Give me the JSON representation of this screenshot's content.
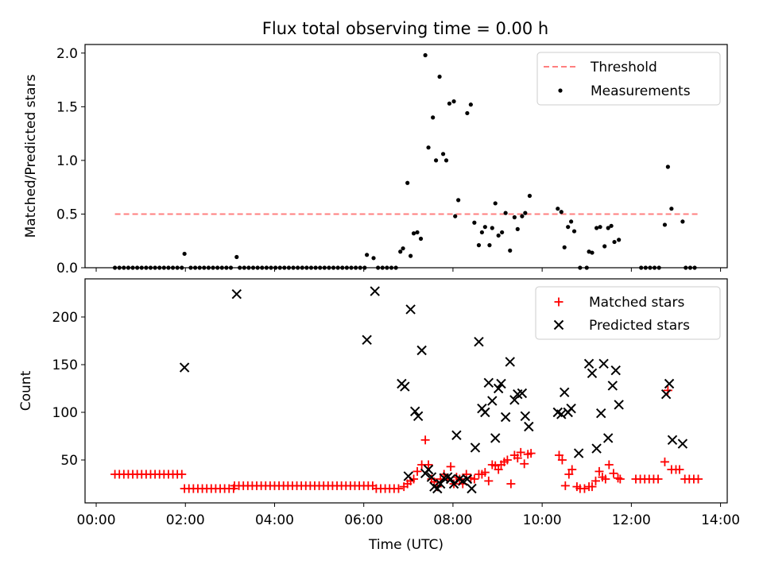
{
  "figure": {
    "title": "Flux total observing time = 0.00 h",
    "background": "#ffffff"
  },
  "chart_data": [
    {
      "type": "scatter",
      "ylabel": "Matched/Predicted stars",
      "ylim": [
        0,
        2.08
      ],
      "xlim": [
        -0.25,
        14.15
      ],
      "yticks": [
        0.0,
        0.5,
        1.0,
        1.5,
        2.0
      ],
      "ytick_labels": [
        "0.0",
        "0.5",
        "1.0",
        "1.5",
        "2.0"
      ],
      "legend": {
        "position": "top-right",
        "entries": [
          {
            "label": "Threshold",
            "kind": "dashed-line",
            "color": "#ff7f7f"
          },
          {
            "label": "Measurements",
            "kind": "dot",
            "color": "#000000"
          }
        ]
      },
      "threshold": {
        "y": 0.5,
        "x_start": 0.42,
        "x_end": 13.5,
        "color": "#ff7f7f"
      },
      "zero_runs": [
        {
          "start": 0.42,
          "end": 13.5,
          "step": 0.1,
          "exclude": [
            [
              1.98,
              2.1
            ],
            [
              3.12,
              3.2
            ],
            [
              6.02,
              6.12
            ],
            [
              6.18,
              6.27
            ],
            [
              6.75,
              12.2
            ],
            [
              12.7,
              13.2
            ]
          ]
        }
      ],
      "points": [
        [
          1.98,
          0.13
        ],
        [
          3.15,
          0.1
        ],
        [
          6.07,
          0.12
        ],
        [
          6.22,
          0.09
        ],
        [
          6.82,
          0.15
        ],
        [
          6.88,
          0.18
        ],
        [
          6.98,
          0.79
        ],
        [
          7.05,
          0.11
        ],
        [
          7.12,
          0.32
        ],
        [
          7.2,
          0.33
        ],
        [
          7.28,
          0.27
        ],
        [
          7.38,
          1.98
        ],
        [
          7.45,
          1.12
        ],
        [
          7.55,
          1.4
        ],
        [
          7.62,
          1.0
        ],
        [
          7.7,
          1.78
        ],
        [
          7.78,
          1.06
        ],
        [
          7.85,
          1.0
        ],
        [
          7.92,
          1.53
        ],
        [
          8.02,
          1.55
        ],
        [
          8.05,
          0.48
        ],
        [
          8.12,
          0.63
        ],
        [
          8.32,
          1.44
        ],
        [
          8.4,
          1.52
        ],
        [
          8.48,
          0.42
        ],
        [
          8.58,
          0.21
        ],
        [
          8.65,
          0.33
        ],
        [
          8.72,
          0.38
        ],
        [
          8.82,
          0.21
        ],
        [
          8.88,
          0.37
        ],
        [
          8.95,
          0.6
        ],
        [
          9.02,
          0.3
        ],
        [
          9.1,
          0.33
        ],
        [
          9.18,
          0.51
        ],
        [
          9.28,
          0.16
        ],
        [
          9.38,
          0.47
        ],
        [
          9.45,
          0.36
        ],
        [
          9.55,
          0.48
        ],
        [
          9.62,
          0.51
        ],
        [
          9.72,
          0.67
        ],
        [
          10.35,
          0.55
        ],
        [
          10.43,
          0.52
        ],
        [
          10.5,
          0.19
        ],
        [
          10.58,
          0.38
        ],
        [
          10.65,
          0.43
        ],
        [
          10.72,
          0.34
        ],
        [
          10.85,
          0.0
        ],
        [
          11.0,
          0.0
        ],
        [
          11.05,
          0.15
        ],
        [
          11.12,
          0.14
        ],
        [
          11.22,
          0.37
        ],
        [
          11.3,
          0.38
        ],
        [
          11.4,
          0.2
        ],
        [
          11.48,
          0.37
        ],
        [
          11.55,
          0.39
        ],
        [
          11.62,
          0.24
        ],
        [
          11.72,
          0.26
        ],
        [
          12.75,
          0.4
        ],
        [
          12.82,
          0.94
        ],
        [
          12.9,
          0.55
        ],
        [
          13.15,
          0.43
        ]
      ]
    },
    {
      "type": "scatter",
      "xlabel": "Time (UTC)",
      "ylabel": "Count",
      "ylim": [
        5,
        240
      ],
      "xlim": [
        -0.25,
        14.15
      ],
      "yticks": [
        50,
        100,
        150,
        200
      ],
      "ytick_labels": [
        "50",
        "100",
        "150",
        "200"
      ],
      "xticks": [
        0,
        2,
        4,
        6,
        8,
        10,
        12,
        14
      ],
      "xtick_labels": [
        "00:00",
        "02:00",
        "04:00",
        "06:00",
        "08:00",
        "10:00",
        "12:00",
        "14:00"
      ],
      "legend": {
        "position": "top-right",
        "entries": [
          {
            "label": "Matched stars",
            "kind": "plus",
            "color": "#ff0000"
          },
          {
            "label": "Predicted stars",
            "kind": "cross",
            "color": "#000000"
          }
        ]
      },
      "series": [
        {
          "name": "Matched stars",
          "marker": "plus",
          "color": "#ff0000",
          "runs": [
            {
              "start": 0.42,
              "end": 1.95,
              "step": 0.1,
              "y": 35
            },
            {
              "start": 1.98,
              "end": 3.08,
              "step": 0.1,
              "y": 20
            },
            {
              "start": 3.1,
              "end": 6.25,
              "step": 0.1,
              "y": 23
            },
            {
              "start": 6.28,
              "end": 6.85,
              "step": 0.1,
              "y": 20
            }
          ],
          "points": [
            [
              6.9,
              22
            ],
            [
              6.98,
              25
            ],
            [
              7.05,
              28
            ],
            [
              7.12,
              30
            ],
            [
              7.2,
              38
            ],
            [
              7.3,
              45
            ],
            [
              7.38,
              71
            ],
            [
              7.45,
              45
            ],
            [
              7.52,
              30
            ],
            [
              7.58,
              27
            ],
            [
              7.65,
              22
            ],
            [
              7.72,
              30
            ],
            [
              7.8,
              35
            ],
            [
              7.88,
              30
            ],
            [
              7.95,
              43
            ],
            [
              8.02,
              25
            ],
            [
              8.08,
              32
            ],
            [
              8.15,
              30
            ],
            [
              8.22,
              25
            ],
            [
              8.3,
              35
            ],
            [
              8.4,
              31
            ],
            [
              8.48,
              30
            ],
            [
              8.58,
              35
            ],
            [
              8.65,
              35
            ],
            [
              8.72,
              37
            ],
            [
              8.8,
              28
            ],
            [
              8.88,
              45
            ],
            [
              8.95,
              44
            ],
            [
              9.02,
              40
            ],
            [
              9.08,
              45
            ],
            [
              9.15,
              48
            ],
            [
              9.22,
              50
            ],
            [
              9.3,
              25
            ],
            [
              9.38,
              55
            ],
            [
              9.45,
              52
            ],
            [
              9.52,
              58
            ],
            [
              9.6,
              46
            ],
            [
              9.68,
              56
            ],
            [
              9.75,
              57
            ],
            [
              10.38,
              55
            ],
            [
              10.45,
              50
            ],
            [
              10.52,
              23
            ],
            [
              10.6,
              35
            ],
            [
              10.67,
              40
            ],
            [
              10.78,
              22
            ],
            [
              10.85,
              20
            ],
            [
              10.95,
              20
            ],
            [
              11.05,
              22
            ],
            [
              11.12,
              22
            ],
            [
              11.2,
              28
            ],
            [
              11.28,
              38
            ],
            [
              11.35,
              32
            ],
            [
              11.42,
              30
            ],
            [
              11.5,
              45
            ],
            [
              11.6,
              36
            ],
            [
              11.7,
              31
            ],
            [
              11.75,
              30
            ],
            [
              12.1,
              30
            ],
            [
              12.2,
              30
            ],
            [
              12.3,
              30
            ],
            [
              12.4,
              30
            ],
            [
              12.5,
              30
            ],
            [
              12.6,
              30
            ],
            [
              12.75,
              48
            ],
            [
              12.82,
              123
            ],
            [
              12.9,
              40
            ],
            [
              13.0,
              40
            ],
            [
              13.08,
              40
            ],
            [
              13.2,
              30
            ],
            [
              13.3,
              30
            ],
            [
              13.4,
              30
            ],
            [
              13.5,
              30
            ]
          ]
        },
        {
          "name": "Predicted stars",
          "marker": "cross",
          "color": "#000000",
          "points": [
            [
              1.98,
              147
            ],
            [
              3.15,
              224
            ],
            [
              6.07,
              176
            ],
            [
              6.25,
              227
            ],
            [
              6.85,
              130
            ],
            [
              6.92,
              127
            ],
            [
              7.0,
              33
            ],
            [
              7.05,
              208
            ],
            [
              7.15,
              101
            ],
            [
              7.22,
              96
            ],
            [
              7.3,
              165
            ],
            [
              7.38,
              36
            ],
            [
              7.45,
              40
            ],
            [
              7.52,
              32
            ],
            [
              7.58,
              22
            ],
            [
              7.65,
              20
            ],
            [
              7.72,
              25
            ],
            [
              7.8,
              31
            ],
            [
              7.88,
              32
            ],
            [
              7.95,
              30
            ],
            [
              8.02,
              25
            ],
            [
              8.08,
              76
            ],
            [
              8.15,
              30
            ],
            [
              8.22,
              28
            ],
            [
              8.32,
              30
            ],
            [
              8.42,
              20
            ],
            [
              8.5,
              63
            ],
            [
              8.58,
              174
            ],
            [
              8.65,
              104
            ],
            [
              8.72,
              100
            ],
            [
              8.8,
              131
            ],
            [
              8.88,
              112
            ],
            [
              8.95,
              73
            ],
            [
              9.02,
              125
            ],
            [
              9.08,
              130
            ],
            [
              9.18,
              95
            ],
            [
              9.28,
              153
            ],
            [
              9.38,
              113
            ],
            [
              9.45,
              119
            ],
            [
              9.55,
              120
            ],
            [
              9.62,
              96
            ],
            [
              9.7,
              85
            ],
            [
              10.35,
              100
            ],
            [
              10.43,
              98
            ],
            [
              10.5,
              121
            ],
            [
              10.58,
              100
            ],
            [
              10.65,
              104
            ],
            [
              10.82,
              57
            ],
            [
              11.05,
              151
            ],
            [
              11.12,
              141
            ],
            [
              11.22,
              62
            ],
            [
              11.32,
              99
            ],
            [
              11.38,
              151
            ],
            [
              11.48,
              73
            ],
            [
              11.58,
              128
            ],
            [
              11.65,
              144
            ],
            [
              11.72,
              108
            ],
            [
              12.78,
              119
            ],
            [
              12.85,
              130
            ],
            [
              12.92,
              71
            ],
            [
              13.15,
              67
            ]
          ]
        }
      ]
    }
  ]
}
